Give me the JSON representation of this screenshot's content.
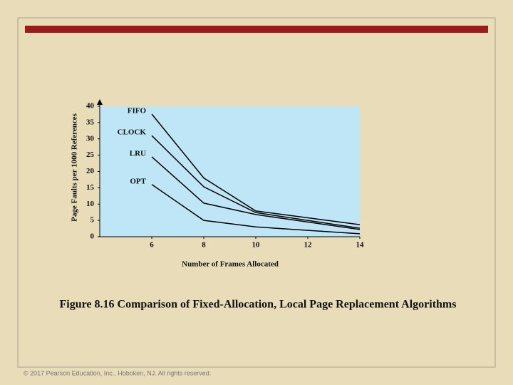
{
  "chart_data": {
    "type": "line",
    "x_label": "Number of Frames Allocated",
    "y_label": "Page Faults per 1000 References",
    "x": [
      6,
      8,
      10,
      14
    ],
    "series": [
      {
        "name": "FIFO",
        "color": "#000000",
        "values": [
          37.6,
          18,
          7.9,
          3.7
        ]
      },
      {
        "name": "CLOCK",
        "color": "#000000",
        "values": [
          31,
          15.3,
          7.4,
          2.6
        ]
      },
      {
        "name": "LRU",
        "color": "#000000",
        "values": [
          24.5,
          10.3,
          6.8,
          2.2
        ]
      },
      {
        "name": "OPT",
        "color": "#000000",
        "values": [
          16,
          5,
          3,
          0.9
        ]
      }
    ],
    "xlim": [
      4,
      14
    ],
    "xticks": [
      6,
      8,
      10,
      12,
      14
    ],
    "ylim": [
      0,
      40
    ],
    "yticks": [
      0,
      5,
      10,
      15,
      20,
      25,
      30,
      35,
      40
    ],
    "background": "#bfe6f7"
  },
  "slide": {
    "caption": "Figure 8.16  Comparison of Fixed-Allocation, Local Page Replacement  Algorithms",
    "footer": "© 2017 Pearson Education, Inc., Hoboken, NJ. All rights reserved."
  }
}
